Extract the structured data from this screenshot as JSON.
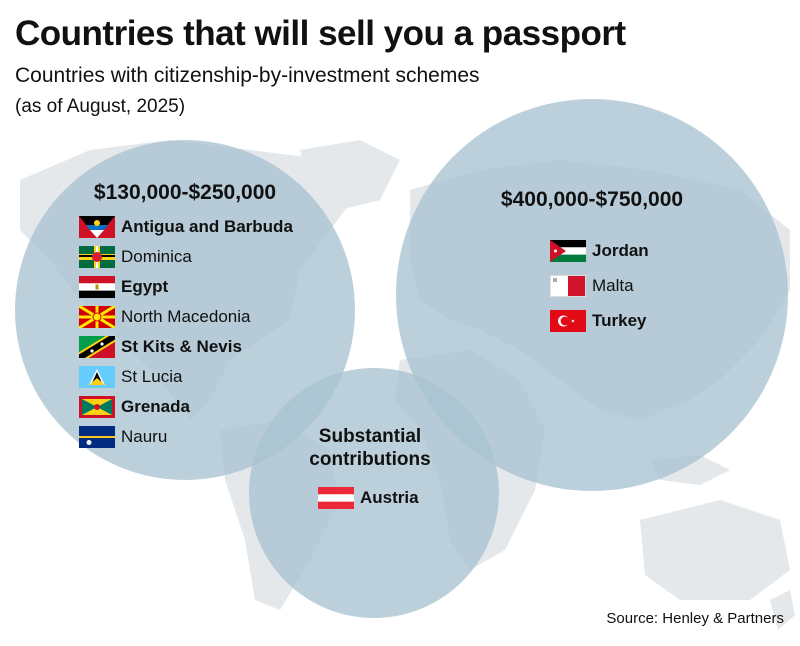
{
  "title": "Countries that will sell you a passport",
  "subtitle": "Countries with citizenship-by-investment schemes",
  "as_of": "(as of August, 2025)",
  "source": "Source: Henley & Partners",
  "colors": {
    "circle": "#a9c3d1",
    "map": "#e4e8ea",
    "text": "#111111"
  },
  "groups": {
    "low": {
      "heading": "$130,000-$250,000",
      "countries": [
        {
          "name": "Antigua and Barbuda",
          "flag": "antigua",
          "bold": true
        },
        {
          "name": "Dominica",
          "flag": "dominica",
          "bold": false
        },
        {
          "name": "Egypt",
          "flag": "egypt",
          "bold": true
        },
        {
          "name": "North Macedonia",
          "flag": "macedonia",
          "bold": false
        },
        {
          "name": "St Kits & Nevis",
          "flag": "stkitts",
          "bold": true
        },
        {
          "name": "St Lucia",
          "flag": "stlucia",
          "bold": false
        },
        {
          "name": "Grenada",
          "flag": "grenada",
          "bold": true
        },
        {
          "name": "Nauru",
          "flag": "nauru",
          "bold": false
        }
      ]
    },
    "high": {
      "heading": "$400,000-$750,000",
      "countries": [
        {
          "name": "Jordan",
          "flag": "jordan",
          "bold": true
        },
        {
          "name": "Malta",
          "flag": "malta",
          "bold": false
        },
        {
          "name": "Turkey",
          "flag": "turkey",
          "bold": true
        }
      ]
    },
    "contrib": {
      "heading_line1": "Substantial",
      "heading_line2": "contributions",
      "countries": [
        {
          "name": "Austria",
          "flag": "austria",
          "bold": true
        }
      ]
    }
  }
}
